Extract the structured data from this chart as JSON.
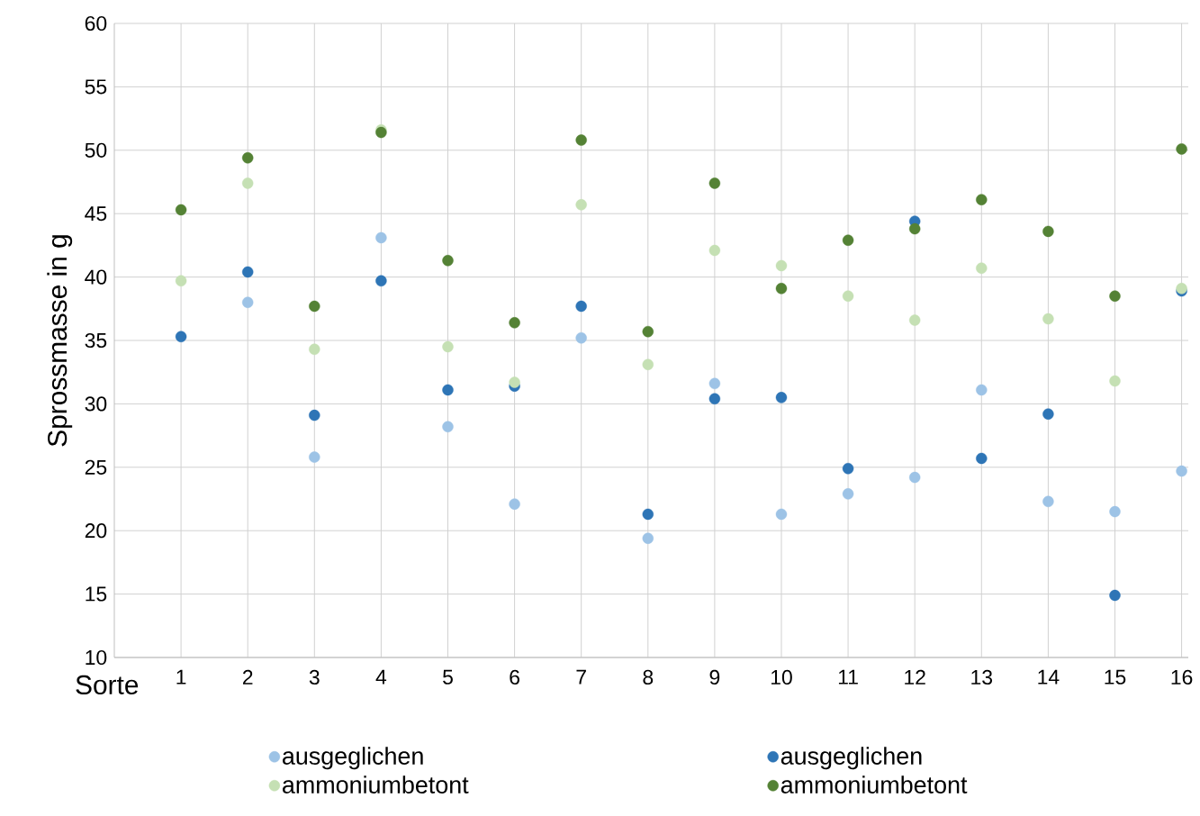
{
  "chart_data": {
    "type": "scatter",
    "xlabel": "Sorte",
    "ylabel": "Sprossmasse in g",
    "categories": [
      "1",
      "2",
      "3",
      "4",
      "5",
      "6",
      "7",
      "8",
      "9",
      "10",
      "11",
      "12",
      "13",
      "14",
      "15",
      "16"
    ],
    "series": [
      {
        "name": "ausgeglichen",
        "color": "#9dc3e6",
        "values": [
          null,
          38.0,
          25.8,
          43.1,
          28.2,
          22.1,
          35.2,
          19.4,
          31.6,
          21.3,
          22.9,
          24.2,
          31.1,
          22.3,
          21.5,
          24.7
        ]
      },
      {
        "name": "ausgeglichen",
        "color": "#2e75b6",
        "values": [
          35.3,
          40.4,
          29.1,
          39.7,
          31.1,
          31.4,
          37.7,
          21.3,
          30.4,
          30.5,
          24.9,
          44.4,
          25.7,
          29.2,
          14.9,
          38.9
        ]
      },
      {
        "name": "ammoniumbetont",
        "color": "#c5e0b4",
        "values": [
          39.7,
          47.4,
          34.3,
          51.6,
          34.5,
          31.7,
          45.7,
          33.1,
          42.1,
          40.9,
          38.5,
          36.6,
          40.7,
          36.7,
          31.8,
          39.1
        ]
      },
      {
        "name": "ammoniumbetont",
        "color": "#548235",
        "values": [
          45.3,
          49.4,
          37.7,
          51.4,
          41.3,
          36.4,
          50.8,
          35.7,
          47.4,
          39.1,
          42.9,
          43.8,
          46.1,
          43.6,
          38.5,
          50.1
        ]
      }
    ],
    "ylim": [
      10,
      60
    ],
    "yticks": [
      10,
      15,
      20,
      25,
      30,
      35,
      40,
      45,
      50,
      55,
      60
    ],
    "grid": true,
    "legend": "bottom",
    "marker": "circle"
  }
}
